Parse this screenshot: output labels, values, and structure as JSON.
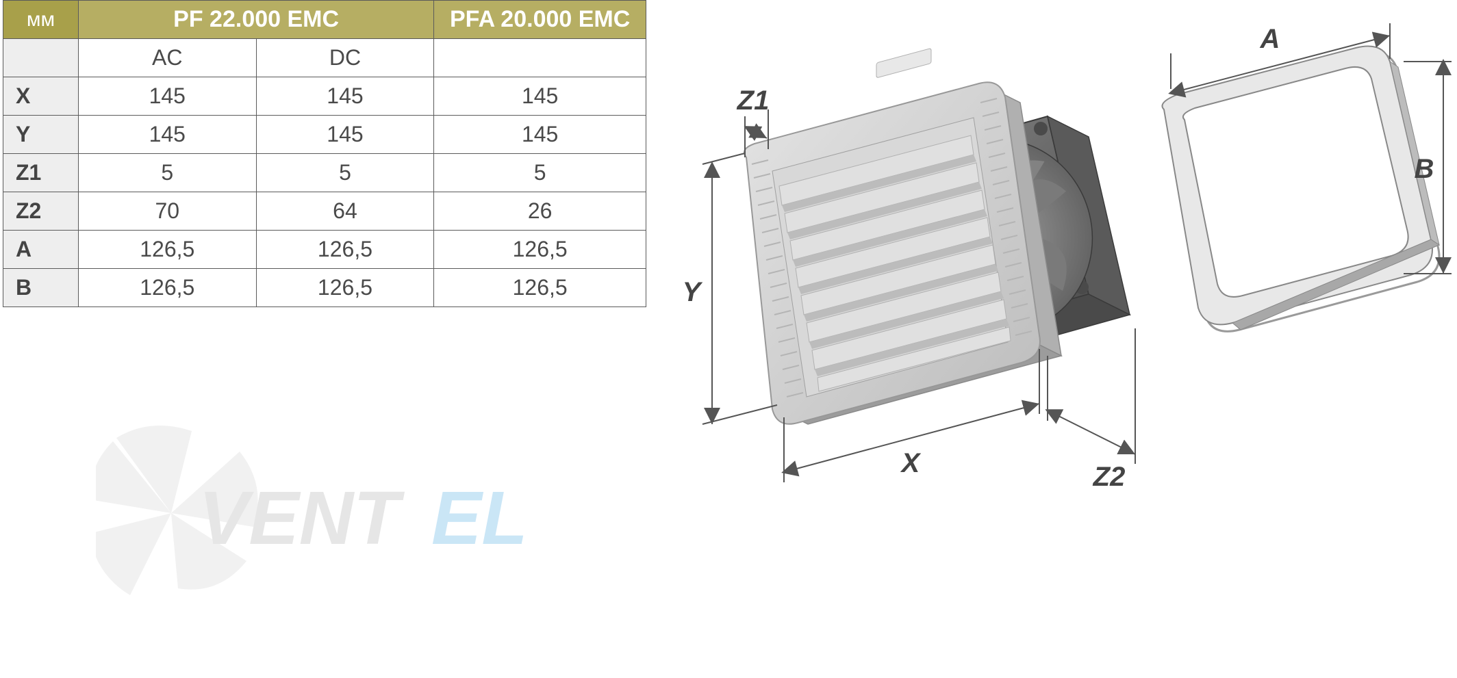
{
  "table": {
    "header_mm": "мм",
    "header_pf": "PF 22.000 EMC",
    "header_pfa": "PFA 20.000 EMC",
    "sub_ac": "AC",
    "sub_dc": "DC",
    "rows": [
      {
        "label": "X",
        "ac": "145",
        "dc": "145",
        "pfa": "145"
      },
      {
        "label": "Y",
        "ac": "145",
        "dc": "145",
        "pfa": "145"
      },
      {
        "label": "Z1",
        "ac": "5",
        "dc": "5",
        "pfa": "5"
      },
      {
        "label": "Z2",
        "ac": "70",
        "dc": "64",
        "pfa": "26"
      },
      {
        "label": "A",
        "ac": "126,5",
        "dc": "126,5",
        "pfa": "126,5"
      },
      {
        "label": "B",
        "ac": "126,5",
        "dc": "126,5",
        "pfa": "126,5"
      }
    ],
    "colors": {
      "header_bg": "#b6ae63",
      "header_mm_bg": "#a8a04a",
      "rowhead_bg": "#eeeeee",
      "header_text": "#ffffff",
      "cell_text": "#4a4a4a",
      "border": "#5a5a5a"
    }
  },
  "watermark": {
    "text_part1": "VENT",
    "text_part2": "EL",
    "colors": {
      "fan_fill": "#d8d8d8",
      "text_gray": "#b8b8b8",
      "text_blue": "#6bb8e8"
    }
  },
  "diagram": {
    "labels": {
      "Z1": "Z1",
      "Y": "Y",
      "X": "X",
      "Z2": "Z2",
      "A": "A",
      "B": "B"
    },
    "colors": {
      "fan_body": "#c7c7c7",
      "fan_body_light": "#dcdcdc",
      "fan_body_dark": "#9d9d9d",
      "fan_back": "#6e6e6e",
      "fan_back_dark": "#4a4a4a",
      "fan_blade": "#8a8a8a",
      "louver": "#d4d4d4",
      "louver_shadow": "#b8b8b8",
      "frame_outline": "#888888",
      "frame_fill": "#d8d8d8",
      "dim_line": "#555555",
      "label_text": "#444444"
    },
    "font_family": "Arial",
    "label_fontsize": 40,
    "label_fontstyle": "italic bold"
  }
}
